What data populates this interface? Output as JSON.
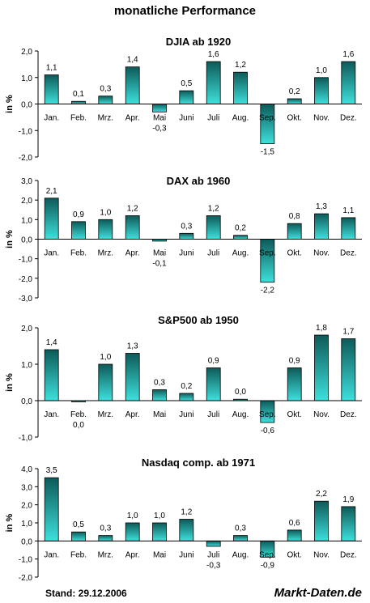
{
  "title": "monatliche Performance",
  "footer": {
    "stand": "Stand: 29.12.2006",
    "brand": "Markt-Daten.de"
  },
  "colors": {
    "bar_top": "#0d5a58",
    "bar_bottom": "#3ee0dc",
    "stroke": "#000000"
  },
  "chart_data": [
    {
      "type": "bar",
      "title": "DJIA ab 1920",
      "ylabel": "in %",
      "categories": [
        "Jan.",
        "Feb.",
        "Mrz.",
        "Apr.",
        "Mai",
        "Juni",
        "Juli",
        "Aug.",
        "Sep.",
        "Okt.",
        "Nov.",
        "Dez."
      ],
      "values": [
        1.1,
        0.1,
        0.3,
        1.4,
        -0.3,
        0.5,
        1.6,
        1.2,
        -1.5,
        0.2,
        1.0,
        1.6
      ],
      "value_labels": [
        "1,1",
        "0,1",
        "0,3",
        "1,4",
        "-0,3",
        "0,5",
        "1,6",
        "1,2",
        "-1,5",
        "0,2",
        "1,0",
        "1,6"
      ],
      "ylim": [
        -2.0,
        2.0
      ],
      "yticks": [
        2.0,
        1.0,
        0.0,
        -1.0,
        -2.0
      ],
      "ytick_labels": [
        "2,0",
        "1,0",
        "0,0",
        "-1,0",
        "-2,0"
      ]
    },
    {
      "type": "bar",
      "title": "DAX ab 1960",
      "ylabel": "in %",
      "categories": [
        "Jan.",
        "Feb.",
        "Mrz.",
        "Apr.",
        "Mai",
        "Juni",
        "Juli",
        "Aug.",
        "Sep.",
        "Okt.",
        "Nov.",
        "Dez."
      ],
      "values": [
        2.1,
        0.9,
        1.0,
        1.2,
        -0.1,
        0.3,
        1.2,
        0.2,
        -2.2,
        0.8,
        1.3,
        1.1
      ],
      "value_labels": [
        "2,1",
        "0,9",
        "1,0",
        "1,2",
        "-0,1",
        "0,3",
        "1,2",
        "0,2",
        "-2,2",
        "0,8",
        "1,3",
        "1,1"
      ],
      "ylim": [
        -3.0,
        3.0
      ],
      "yticks": [
        3.0,
        2.0,
        1.0,
        0.0,
        -1.0,
        -2.0,
        -3.0
      ],
      "ytick_labels": [
        "3,0",
        "2,0",
        "1,0",
        "0,0",
        "-1,0",
        "-2,0",
        "-3,0"
      ]
    },
    {
      "type": "bar",
      "title": "S&P500 ab 1950",
      "ylabel": "in %",
      "categories": [
        "Jan.",
        "Feb.",
        "Mrz.",
        "Apr.",
        "Mai",
        "Juni",
        "Juli",
        "Aug.",
        "Sep.",
        "Okt.",
        "Nov.",
        "Dez."
      ],
      "values": [
        1.4,
        -0.02,
        1.0,
        1.3,
        0.3,
        0.2,
        0.9,
        0.04,
        -0.6,
        0.9,
        1.8,
        1.7
      ],
      "value_labels": [
        "1,4",
        "0,0",
        "1,0",
        "1,3",
        "0,3",
        "0,2",
        "0,9",
        "0,0",
        "-0,6",
        "0,9",
        "1,8",
        "1,7"
      ],
      "ylim": [
        -1.0,
        2.0
      ],
      "yticks": [
        2.0,
        1.0,
        0.0,
        -1.0
      ],
      "ytick_labels": [
        "2,0",
        "1,0",
        "0,0",
        "-1,0"
      ]
    },
    {
      "type": "bar",
      "title": "Nasdaq comp. ab 1971",
      "ylabel": "in %",
      "categories": [
        "Jan.",
        "Feb.",
        "Mrz.",
        "Apr.",
        "Mai",
        "Juni",
        "Juli",
        "Aug.",
        "Sep.",
        "Okt.",
        "Nov.",
        "Dez."
      ],
      "values": [
        3.5,
        0.5,
        0.3,
        1.0,
        1.0,
        1.2,
        -0.3,
        0.3,
        -0.9,
        0.6,
        2.2,
        1.9
      ],
      "value_labels": [
        "3,5",
        "0,5",
        "0,3",
        "1,0",
        "1,0",
        "1,2",
        "-0,3",
        "0,3",
        "-0,9",
        "0,6",
        "2,2",
        "1,9"
      ],
      "ylim": [
        -2.0,
        4.0
      ],
      "yticks": [
        4.0,
        3.0,
        2.0,
        1.0,
        0.0,
        -1.0,
        -2.0
      ],
      "ytick_labels": [
        "4,0",
        "3,0",
        "2,0",
        "1,0",
        "0,0",
        "-1,0",
        "-2,0"
      ]
    }
  ]
}
